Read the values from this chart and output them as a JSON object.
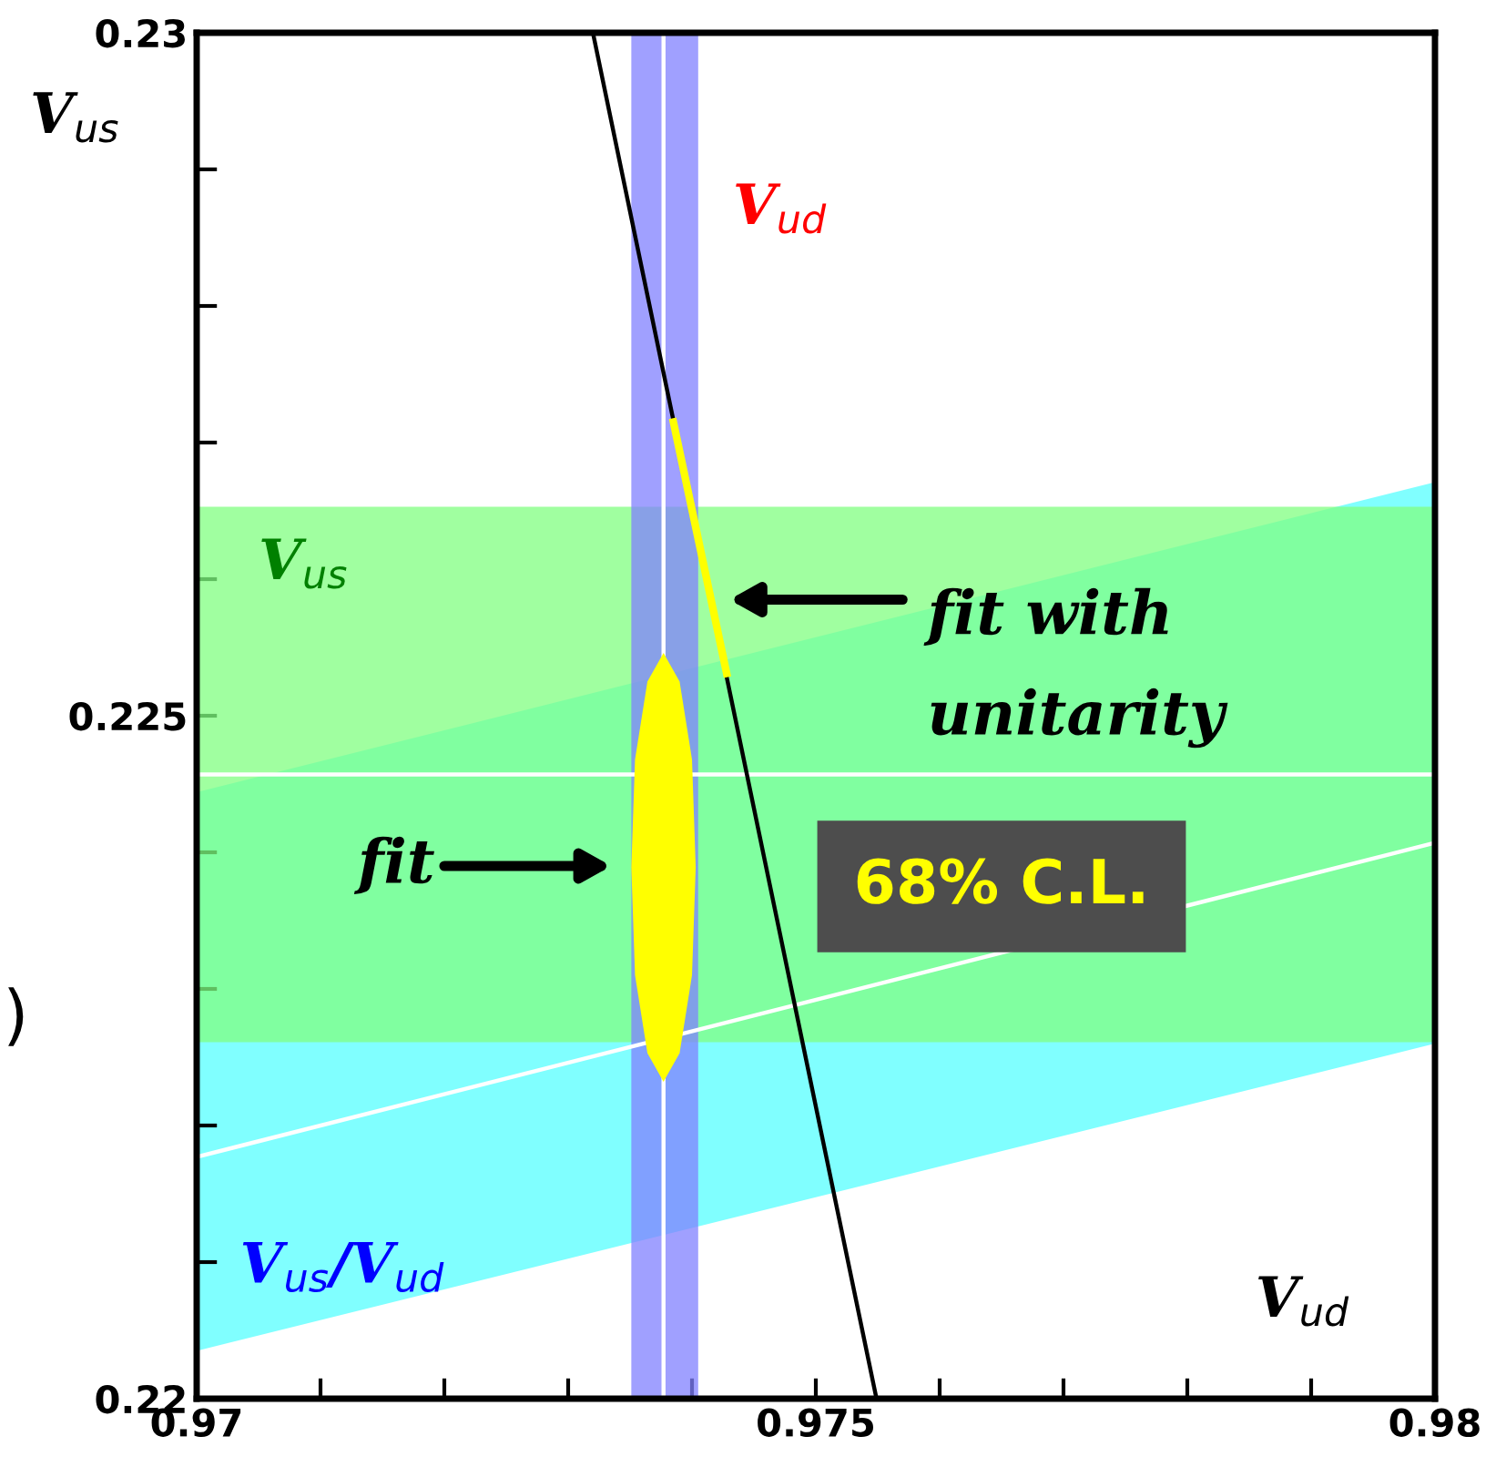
{
  "chart_data": {
    "type": "line",
    "xlabel": "V$_{ud}$",
    "ylabel": "V$_{us}$",
    "xlim": [
      0.97,
      0.98
    ],
    "ylim": [
      0.22,
      0.23
    ],
    "xticks": [
      0.97,
      {
        "value": 0.971,
        "label": null
      },
      {
        "value": 0.972,
        "label": null
      },
      {
        "value": 0.973,
        "label": null
      },
      {
        "value": 0.974,
        "label": null
      },
      0.975,
      {
        "value": 0.976,
        "label": null
      },
      {
        "value": 0.977,
        "label": null
      },
      {
        "value": 0.978,
        "label": null
      },
      {
        "value": 0.979,
        "label": null
      },
      0.98
    ],
    "yticks": [
      0.22,
      {
        "value": 0.221,
        "label": null
      },
      {
        "value": 0.222,
        "label": null
      },
      {
        "value": 0.223,
        "label": null
      },
      {
        "value": 0.224,
        "label": null
      },
      0.225,
      {
        "value": 0.226,
        "label": null
      },
      {
        "value": 0.227,
        "label": null
      },
      {
        "value": 0.228,
        "label": null
      },
      {
        "value": 0.229,
        "label": null
      },
      0.23
    ],
    "grid": false,
    "legend": false,
    "series": [
      {
        "name": "V$_{us}$/V$_{ud}$",
        "type": "area",
        "color": "#80ffff",
        "x": [
          0.97,
          0.98,
          0.98,
          0.97
        ],
        "values": [
          0.22035,
          0.2226,
          0.22671,
          0.22444
        ]
      },
      {
        "type": "line",
        "color": "#ffffff",
        "x": [
          0.97,
          0.98
        ],
        "values": [
          0.22177,
          0.22407
        ]
      },
      {
        "color": "#000000",
        "x": [
          0.9732,
          0.97549
        ],
        "values": [
          0.23,
          0.22
        ]
      },
      {
        "color": "#ffff00",
        "x": [
          0.97385,
          0.97428
        ],
        "values": [
          0.22715,
          0.22531
        ]
      },
      {
        "type": "area",
        "color": "#ffff00",
        "x": [
          0.97403,
          0.974,
          0.9739,
          0.97377,
          0.97364,
          0.97354,
          0.97351,
          0.97354,
          0.97364,
          0.97377,
          0.9739,
          0.974,
          0.97403
        ],
        "values": [
          0.22389,
          0.22468,
          0.22525,
          0.22546,
          0.22525,
          0.22468,
          0.22389,
          0.2231,
          0.22253,
          0.22232,
          0.22253,
          0.2231,
          0.22389
        ]
      }
    ],
    "bands": [
      {
        "axis": "y",
        "from": 0.22261,
        "to": 0.22653,
        "label": "V$_{us}$",
        "color": "#80ff80"
      },
      {
        "axis": "x",
        "from": 0.97351,
        "to": 0.97405,
        "label": "V$_{ud}$",
        "color": "#8080ff"
      }
    ],
    "ref_lines": [
      {
        "axis": "y",
        "value": 0.22457,
        "color": "#ffffff"
      },
      {
        "axis": "x",
        "value": 0.97377,
        "color": "#ffffff"
      }
    ],
    "annotations": [
      "fit with\nunitarity",
      "fit",
      "68% C.L.",
      ")"
    ]
  }
}
